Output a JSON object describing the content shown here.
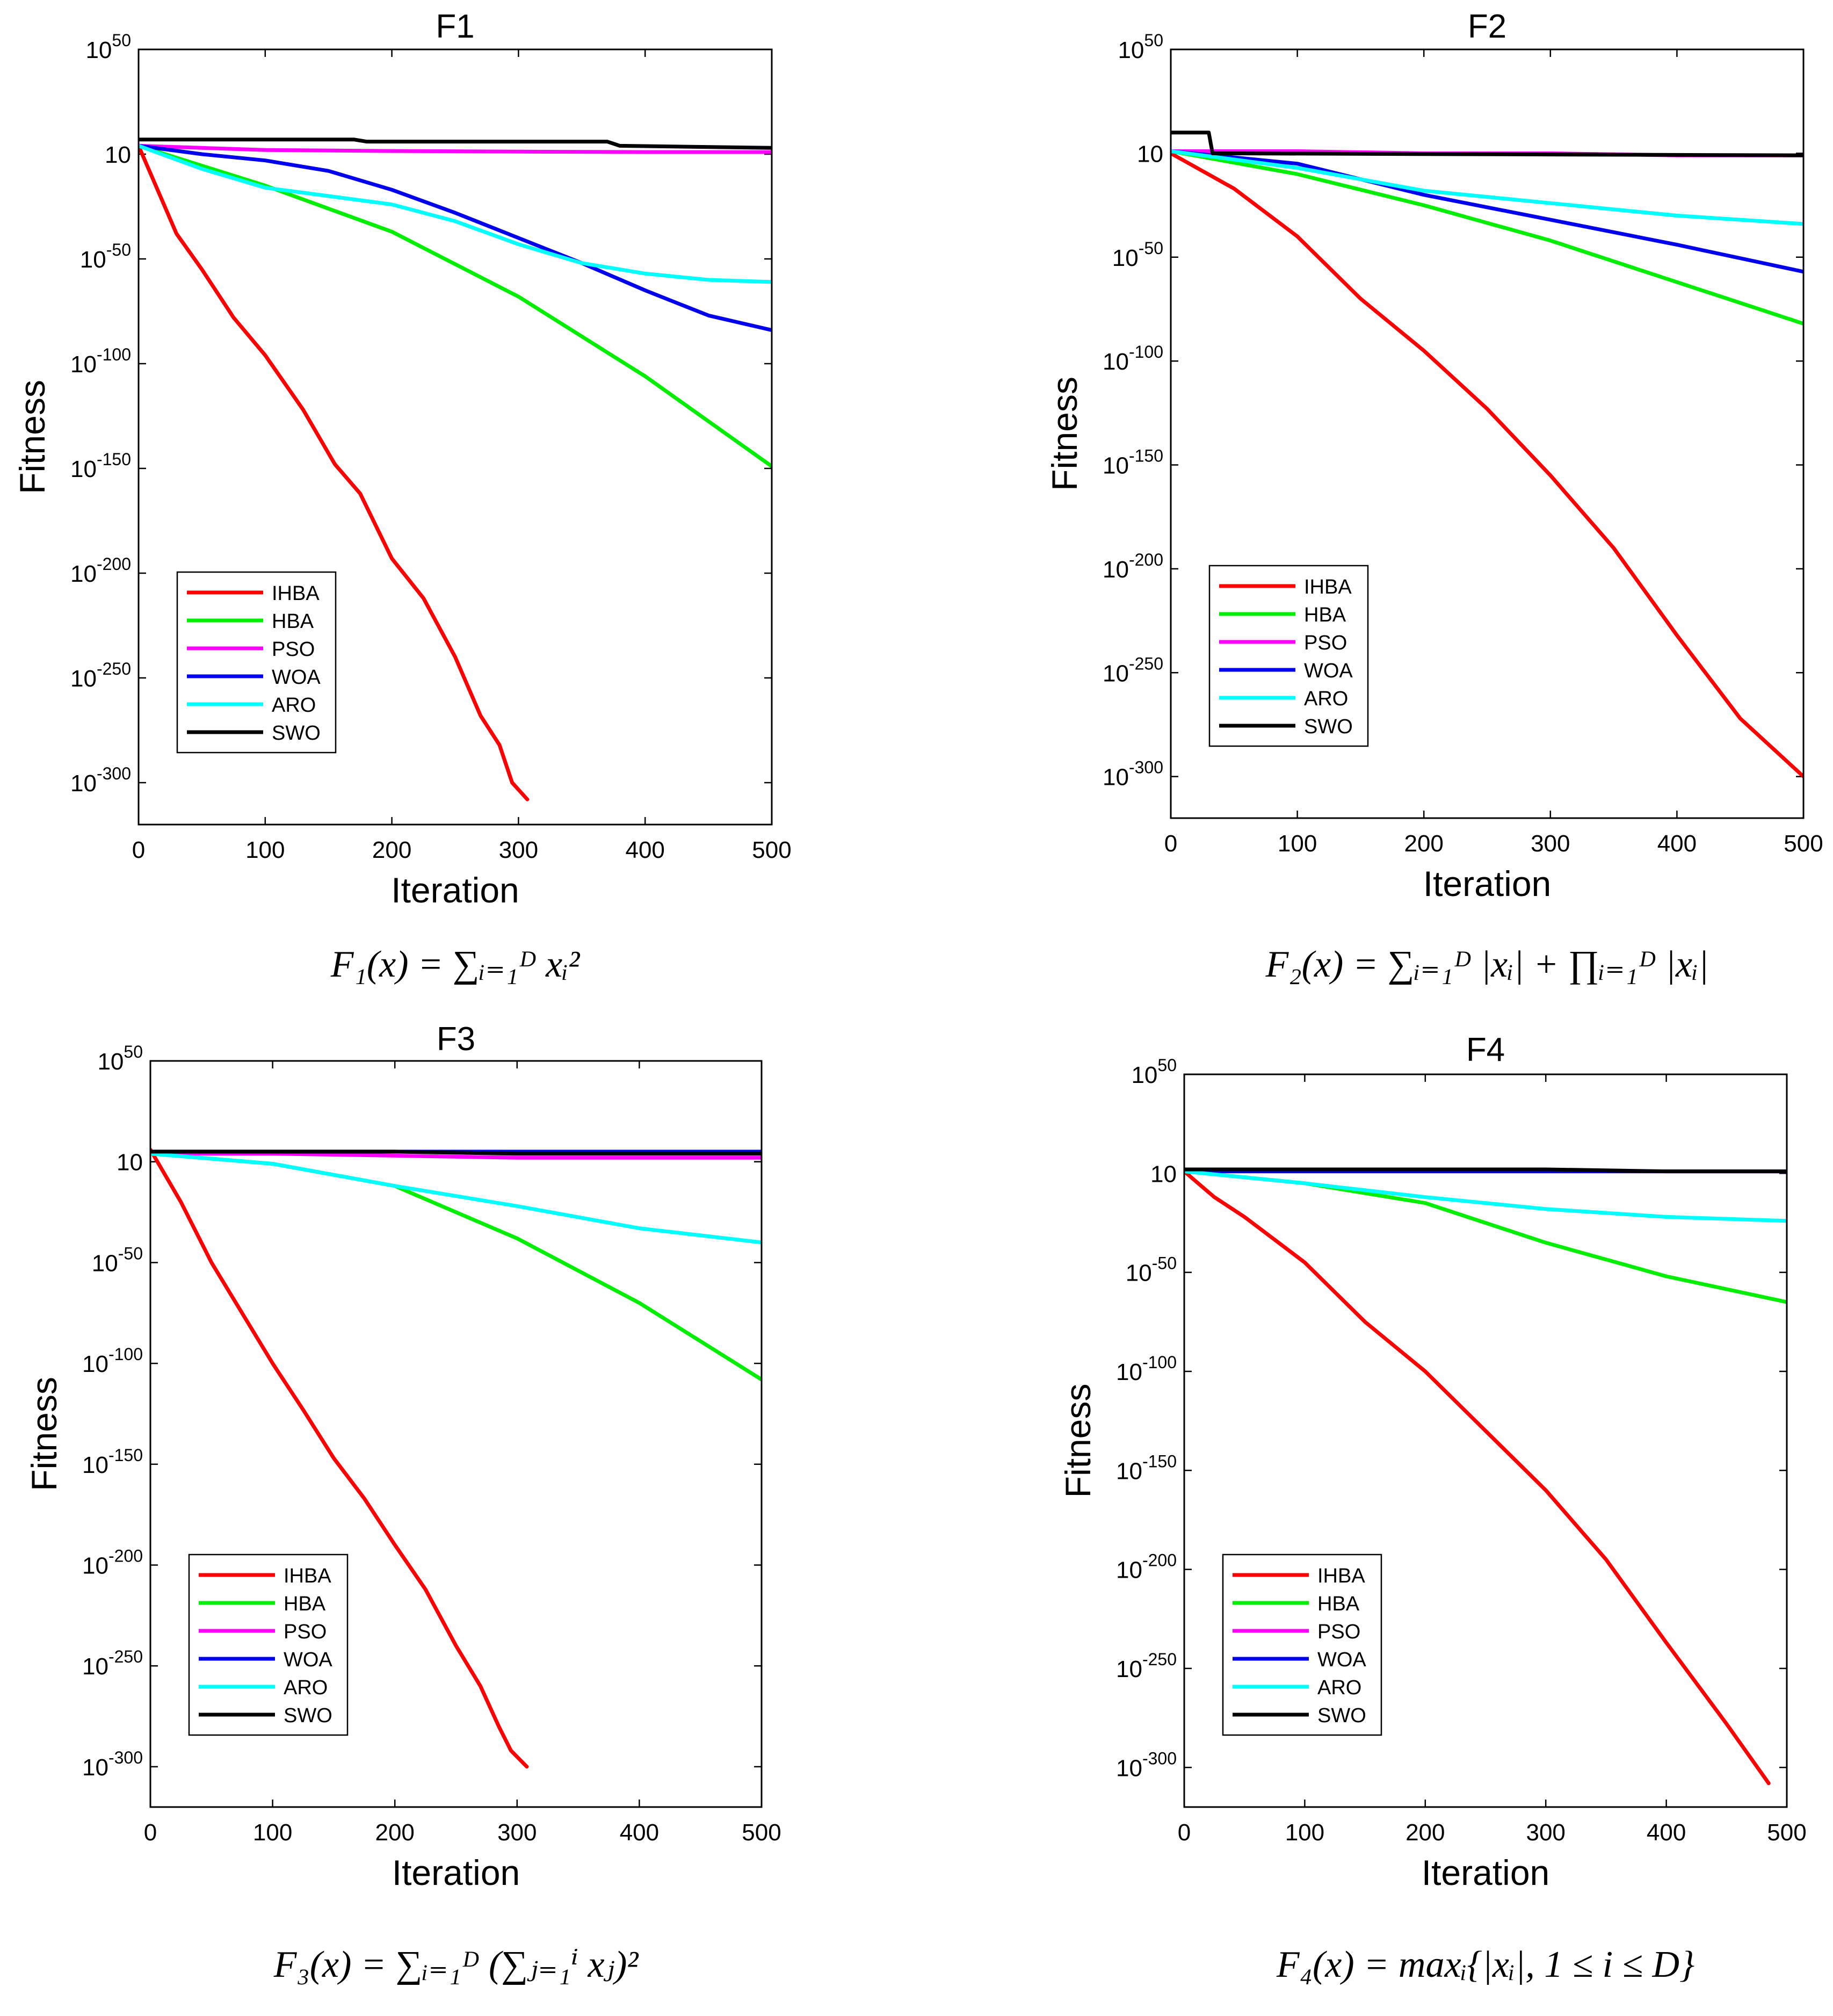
{
  "figure": {
    "series_colors": {
      "IHBA": "#ff0000",
      "HBA": "#00ee00",
      "PSO": "#ff00ff",
      "WOA": "#0000ee",
      "ARO": "#00ffff",
      "SWO": "#000000"
    }
  },
  "chart_data": [
    {
      "type": "line",
      "title": "F1",
      "xlabel": "Iteration",
      "ylabel": "Fitness",
      "yscale": "log10",
      "xlim": [
        0,
        500
      ],
      "ylim_exp": [
        -320,
        50
      ],
      "xticks": [
        "0",
        "100",
        "200",
        "300",
        "400",
        "500"
      ],
      "ytick_exps": [
        "50",
        "0",
        "-50",
        "-100",
        "-150",
        "-200",
        "-250",
        "-300"
      ],
      "ytick_base": "10",
      "ytick_zero": "10",
      "legend_position": "lower-left",
      "formula": "F₁(x) = ∑ᵢ₌₁ᴰ xᵢ²",
      "series": [
        {
          "name": "IHBA",
          "x": [
            0,
            10,
            30,
            50,
            75,
            100,
            130,
            155,
            175,
            200,
            225,
            250,
            270,
            285,
            295,
            307
          ],
          "log10_y": [
            4,
            -10,
            -38,
            -55,
            -78,
            -96,
            -122,
            -148,
            -162,
            -193,
            -212,
            -240,
            -268,
            -282,
            -300,
            -308
          ]
        },
        {
          "name": "HBA",
          "x": [
            0,
            100,
            200,
            300,
            400,
            500
          ],
          "log10_y": [
            4,
            -15,
            -37,
            -68,
            -106,
            -149
          ]
        },
        {
          "name": "PSO",
          "x": [
            0,
            100,
            200,
            300,
            400,
            500
          ],
          "log10_y": [
            4,
            2,
            1.5,
            1.2,
            1,
            1
          ]
        },
        {
          "name": "WOA",
          "x": [
            0,
            50,
            100,
            150,
            200,
            250,
            300,
            350,
            400,
            450,
            500
          ],
          "log10_y": [
            4,
            0,
            -3,
            -8,
            -17,
            -28,
            -40,
            -52,
            -65,
            -77,
            -84
          ]
        },
        {
          "name": "ARO",
          "x": [
            0,
            50,
            100,
            150,
            200,
            250,
            300,
            350,
            400,
            450,
            500
          ],
          "log10_y": [
            4,
            -7,
            -16,
            -20,
            -24,
            -32,
            -43,
            -52,
            -57,
            -60,
            -61
          ]
        },
        {
          "name": "SWO",
          "x": [
            0,
            170,
            180,
            370,
            380,
            500
          ],
          "log10_y": [
            7,
            7,
            6,
            6,
            4,
            3
          ]
        }
      ]
    },
    {
      "type": "line",
      "title": "F2",
      "xlabel": "Iteration",
      "ylabel": "Fitness",
      "yscale": "log10",
      "xlim": [
        0,
        500
      ],
      "ylim_exp": [
        -320,
        50
      ],
      "xticks": [
        "0",
        "100",
        "200",
        "300",
        "400",
        "500"
      ],
      "ytick_exps": [
        "50",
        "0",
        "-50",
        "-100",
        "-150",
        "-200",
        "-250",
        "-300"
      ],
      "ytick_base": "10",
      "ytick_zero": "10",
      "legend_position": "lower-left",
      "formula": "F₂(x) = ∑ᵢ₌₁ᴰ |xᵢ| + ∏ᵢ₌₁ᴰ |xᵢ|",
      "series": [
        {
          "name": "IHBA",
          "x": [
            0,
            50,
            100,
            150,
            200,
            250,
            300,
            350,
            400,
            450,
            500
          ],
          "log10_y": [
            0,
            -17,
            -40,
            -70,
            -95,
            -123,
            -155,
            -190,
            -232,
            -272,
            -300
          ]
        },
        {
          "name": "HBA",
          "x": [
            0,
            100,
            200,
            300,
            400,
            500
          ],
          "log10_y": [
            1,
            -10,
            -25,
            -42,
            -62,
            -82
          ]
        },
        {
          "name": "PSO",
          "x": [
            0,
            100,
            200,
            300,
            400,
            500
          ],
          "log10_y": [
            1,
            1,
            0,
            0,
            -1,
            -1
          ]
        },
        {
          "name": "WOA",
          "x": [
            0,
            100,
            200,
            300,
            400,
            500
          ],
          "log10_y": [
            1,
            -5,
            -20,
            -32,
            -44,
            -57
          ]
        },
        {
          "name": "ARO",
          "x": [
            0,
            100,
            200,
            300,
            400,
            500
          ],
          "log10_y": [
            1,
            -7,
            -18,
            -24,
            -30,
            -34
          ]
        },
        {
          "name": "SWO",
          "x": [
            0,
            30,
            33,
            500
          ],
          "log10_y": [
            10,
            10,
            0,
            -1
          ]
        }
      ]
    },
    {
      "type": "line",
      "title": "F3",
      "xlabel": "Iteration",
      "ylabel": "Fitness",
      "yscale": "log10",
      "xlim": [
        0,
        500
      ],
      "ylim_exp": [
        -320,
        50
      ],
      "xticks": [
        "0",
        "100",
        "200",
        "300",
        "400",
        "500"
      ],
      "ytick_exps": [
        "50",
        "0",
        "-50",
        "-100",
        "-150",
        "-200",
        "-250",
        "-300"
      ],
      "ytick_base": "10",
      "ytick_zero": "10",
      "legend_position": "lower-left",
      "formula": "F₃(x) = ∑ᵢ₌₁ᴰ (∑ⱼ₌₁ⁱ xⱼ)²",
      "series": [
        {
          "name": "IHBA",
          "x": [
            0,
            25,
            50,
            75,
            100,
            125,
            150,
            175,
            200,
            225,
            250,
            270,
            285,
            295,
            308
          ],
          "log10_y": [
            6,
            -20,
            -50,
            -75,
            -100,
            -123,
            -147,
            -167,
            -190,
            -212,
            -240,
            -260,
            -280,
            -292,
            -300
          ]
        },
        {
          "name": "HBA",
          "x": [
            0,
            100,
            200,
            300,
            400,
            500
          ],
          "log10_y": [
            4,
            -1,
            -12,
            -38,
            -70,
            -108
          ]
        },
        {
          "name": "PSO",
          "x": [
            0,
            100,
            200,
            300,
            400,
            500
          ],
          "log10_y": [
            4,
            4,
            3,
            2,
            2,
            2
          ]
        },
        {
          "name": "WOA",
          "x": [
            0,
            100,
            200,
            300,
            400,
            500
          ],
          "log10_y": [
            5,
            5,
            5,
            5,
            5,
            5
          ]
        },
        {
          "name": "ARO",
          "x": [
            0,
            100,
            200,
            300,
            400,
            500
          ],
          "log10_y": [
            4,
            -1,
            -12,
            -22,
            -33,
            -40
          ]
        },
        {
          "name": "SWO",
          "x": [
            0,
            100,
            200,
            300,
            400,
            500
          ],
          "log10_y": [
            5,
            5,
            5,
            4,
            4,
            4
          ]
        }
      ]
    },
    {
      "type": "line",
      "title": "F4",
      "xlabel": "Iteration",
      "ylabel": "Fitness",
      "yscale": "log10",
      "xlim": [
        0,
        500
      ],
      "ylim_exp": [
        -320,
        50
      ],
      "xticks": [
        "0",
        "100",
        "200",
        "300",
        "400",
        "500"
      ],
      "ytick_exps": [
        "50",
        "0",
        "-50",
        "-100",
        "-150",
        "-200",
        "-250",
        "-300"
      ],
      "ytick_base": "10",
      "ytick_zero": "10",
      "legend_position": "lower-left",
      "formula": "F₄(x) = maxᵢ{|xᵢ|, 1 ≤ i ≤ D}",
      "series": [
        {
          "name": "IHBA",
          "x": [
            0,
            25,
            50,
            100,
            150,
            200,
            250,
            300,
            350,
            400,
            450,
            485
          ],
          "log10_y": [
            1,
            -12,
            -22,
            -45,
            -75,
            -100,
            -130,
            -160,
            -195,
            -237,
            -278,
            -308
          ]
        },
        {
          "name": "HBA",
          "x": [
            0,
            100,
            200,
            300,
            400,
            500
          ],
          "log10_y": [
            1,
            -5,
            -15,
            -35,
            -52,
            -65
          ]
        },
        {
          "name": "PSO",
          "x": [
            0,
            100,
            200,
            300,
            400,
            500
          ],
          "log10_y": [
            1,
            1,
            1,
            1,
            1,
            1
          ]
        },
        {
          "name": "WOA",
          "x": [
            0,
            100,
            200,
            300,
            400,
            500
          ],
          "log10_y": [
            1,
            1,
            1,
            1,
            1,
            1
          ]
        },
        {
          "name": "ARO",
          "x": [
            0,
            100,
            200,
            300,
            400,
            500
          ],
          "log10_y": [
            1,
            -5,
            -12,
            -18,
            -22,
            -24
          ]
        },
        {
          "name": "SWO",
          "x": [
            0,
            100,
            200,
            300,
            400,
            500
          ],
          "log10_y": [
            2,
            2,
            2,
            2,
            1,
            1
          ]
        }
      ]
    }
  ]
}
